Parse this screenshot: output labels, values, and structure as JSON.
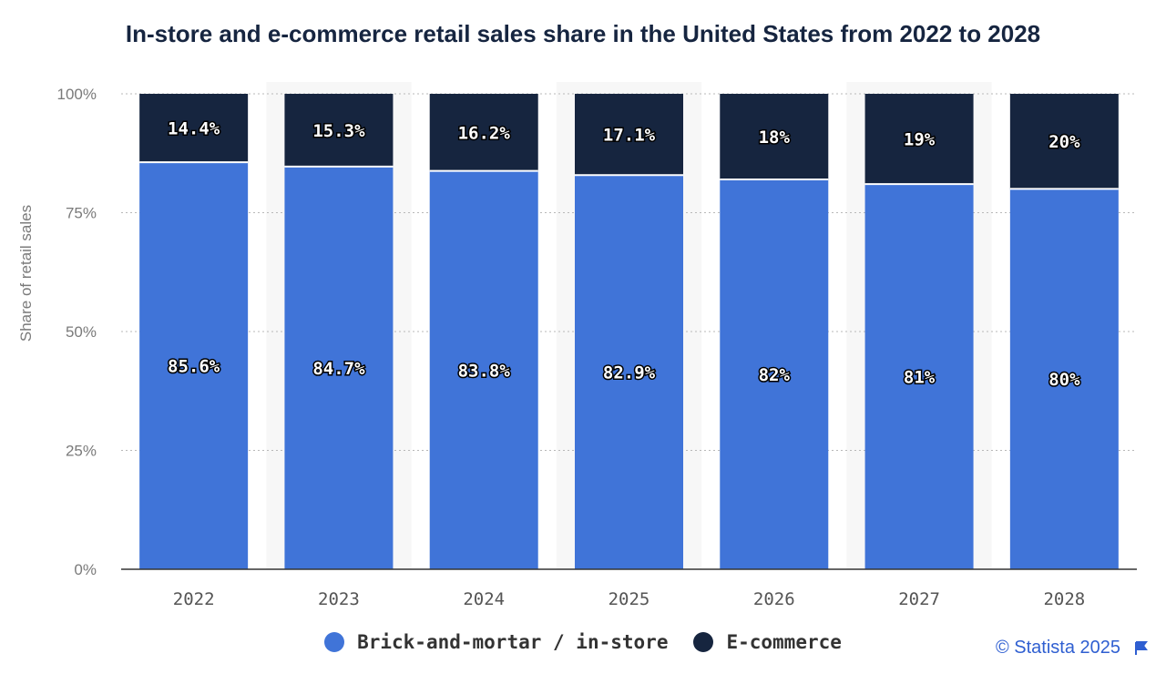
{
  "chart_data": {
    "type": "bar",
    "stacked": true,
    "title": "In-store and e-commerce retail sales share in the United States from 2022 to 2028",
    "ylabel": "Share of retail sales",
    "ylim": [
      0,
      100
    ],
    "yticks": [
      "0%",
      "25%",
      "50%",
      "75%",
      "100%"
    ],
    "categories": [
      "2022",
      "2023",
      "2024",
      "2025",
      "2026",
      "2027",
      "2028"
    ],
    "series": [
      {
        "name": "Brick-and-mortar / in-store",
        "color": "#4074d8",
        "values": [
          85.6,
          84.7,
          83.8,
          82.9,
          82,
          81,
          80
        ],
        "labels": [
          "85.6%",
          "84.7%",
          "83.8%",
          "82.9%",
          "82%",
          "81%",
          "80%"
        ]
      },
      {
        "name": "E-commerce",
        "color": "#16253f",
        "values": [
          14.4,
          15.3,
          16.2,
          17.1,
          18,
          19,
          20
        ],
        "labels": [
          "14.4%",
          "15.3%",
          "16.2%",
          "17.1%",
          "18%",
          "19%",
          "20%"
        ]
      }
    ],
    "grid": true,
    "legend": "bottom-center"
  },
  "credit": "© Statista 2025",
  "icons": {
    "flag": "flag-icon"
  }
}
